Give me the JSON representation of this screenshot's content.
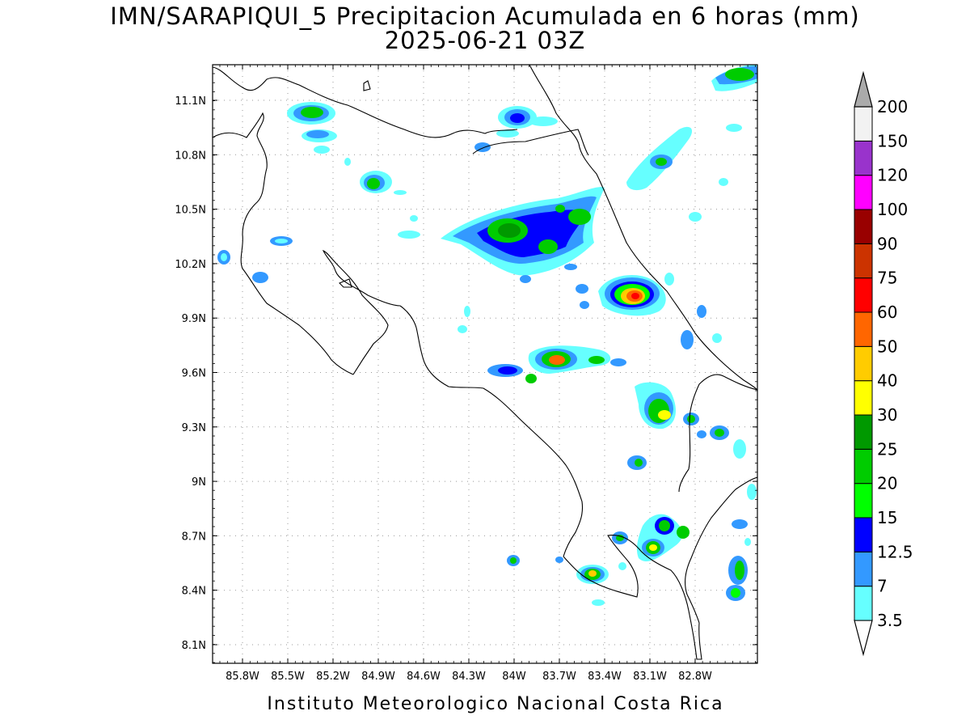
{
  "title": {
    "line1": "IMN/SARAPIQUI_5 Precipitacion Acumulada en 6 horas (mm)",
    "line2": "2025-06-21 03Z"
  },
  "footer": "Instituto Meteorologico Nacional Costa Rica",
  "map": {
    "lon_range": [
      -86.0,
      -83.0
    ],
    "lat_range": [
      8.0,
      11.2
    ],
    "x_ticks": [
      "85.8W",
      "85.5W",
      "85.2W",
      "84.9W",
      "84.6W",
      "84.3W",
      "84W",
      "83.7W",
      "83.4W",
      "83.1W",
      "82.8W"
    ],
    "y_ticks": [
      "11.1N",
      "10.8N",
      "10.5N",
      "10.2N",
      "9.9N",
      "9.6N",
      "9.3N",
      "9N",
      "8.7N",
      "8.4N",
      "8.1N"
    ],
    "grid": "dotted"
  },
  "colorbar": {
    "levels": [
      "3.5",
      "7",
      "12.5",
      "15",
      "20",
      "25",
      "30",
      "40",
      "50",
      "60",
      "75",
      "90",
      "100",
      "120",
      "150",
      "200"
    ],
    "colors": [
      "#66ffff",
      "#3399ff",
      "#0000ff",
      "#00ff00",
      "#00cc00",
      "#009900",
      "#ffff00",
      "#ffcc00",
      "#ff6600",
      "#ff0000",
      "#cc3300",
      "#990000",
      "#ff00ff",
      "#9933cc",
      "#f2f2f2",
      "#aaaaaa"
    ]
  },
  "rain_cells": [
    {
      "lon": -85.35,
      "lat": 11.1,
      "max_mm": 25
    },
    {
      "lon": -84.95,
      "lat": 10.65,
      "max_mm": 25
    },
    {
      "lon": -84.0,
      "lat": 11.05,
      "max_mm": 15
    },
    {
      "lon": -84.1,
      "lat": 10.35,
      "max_mm": 30
    },
    {
      "lon": -83.8,
      "lat": 10.3,
      "max_mm": 25
    },
    {
      "lon": -83.6,
      "lat": 10.45,
      "max_mm": 25
    },
    {
      "lon": -83.3,
      "lat": 10.0,
      "max_mm": 75
    },
    {
      "lon": -83.75,
      "lat": 9.7,
      "max_mm": 60
    },
    {
      "lon": -83.15,
      "lat": 9.4,
      "max_mm": 40
    },
    {
      "lon": -83.1,
      "lat": 10.8,
      "max_mm": 25
    },
    {
      "lon": -82.75,
      "lat": 11.2,
      "max_mm": 30
    },
    {
      "lon": -83.55,
      "lat": 8.5,
      "max_mm": 40
    },
    {
      "lon": -83.2,
      "lat": 8.6,
      "max_mm": 40
    },
    {
      "lon": -82.75,
      "lat": 8.45,
      "max_mm": 30
    }
  ]
}
